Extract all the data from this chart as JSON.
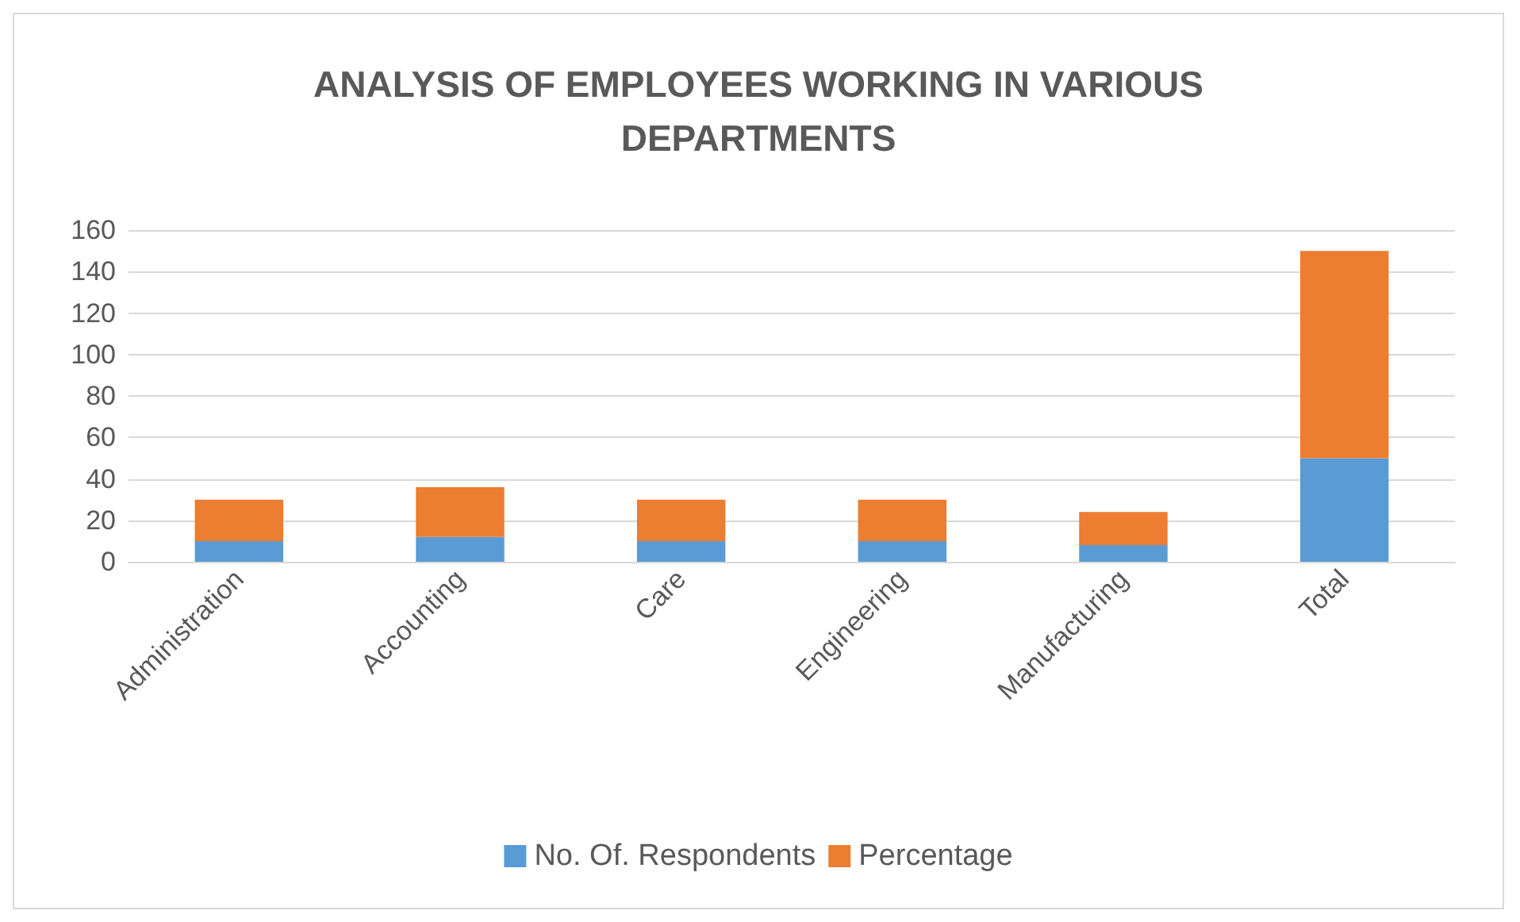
{
  "chart_data": {
    "type": "bar",
    "title": "ANALYSIS OF EMPLOYEES WORKING IN VARIOUS\nDEPARTMENTS",
    "categories": [
      "Administration",
      "Accounting",
      "Care",
      "Engineering",
      "Manufacturing",
      "Total"
    ],
    "stacked": true,
    "series": [
      {
        "name": "No. Of. Respondents",
        "color": "#5b9bd5",
        "values": [
          10,
          12,
          10,
          10,
          8,
          50
        ]
      },
      {
        "name": "Percentage",
        "color": "#ed7d31",
        "values": [
          20,
          24,
          20,
          20,
          16,
          100
        ]
      }
    ],
    "ylim": [
      0,
      160
    ],
    "yticks": [
      0,
      20,
      40,
      60,
      80,
      100,
      120,
      140,
      160
    ],
    "grid": "y",
    "legend": "bottom"
  }
}
